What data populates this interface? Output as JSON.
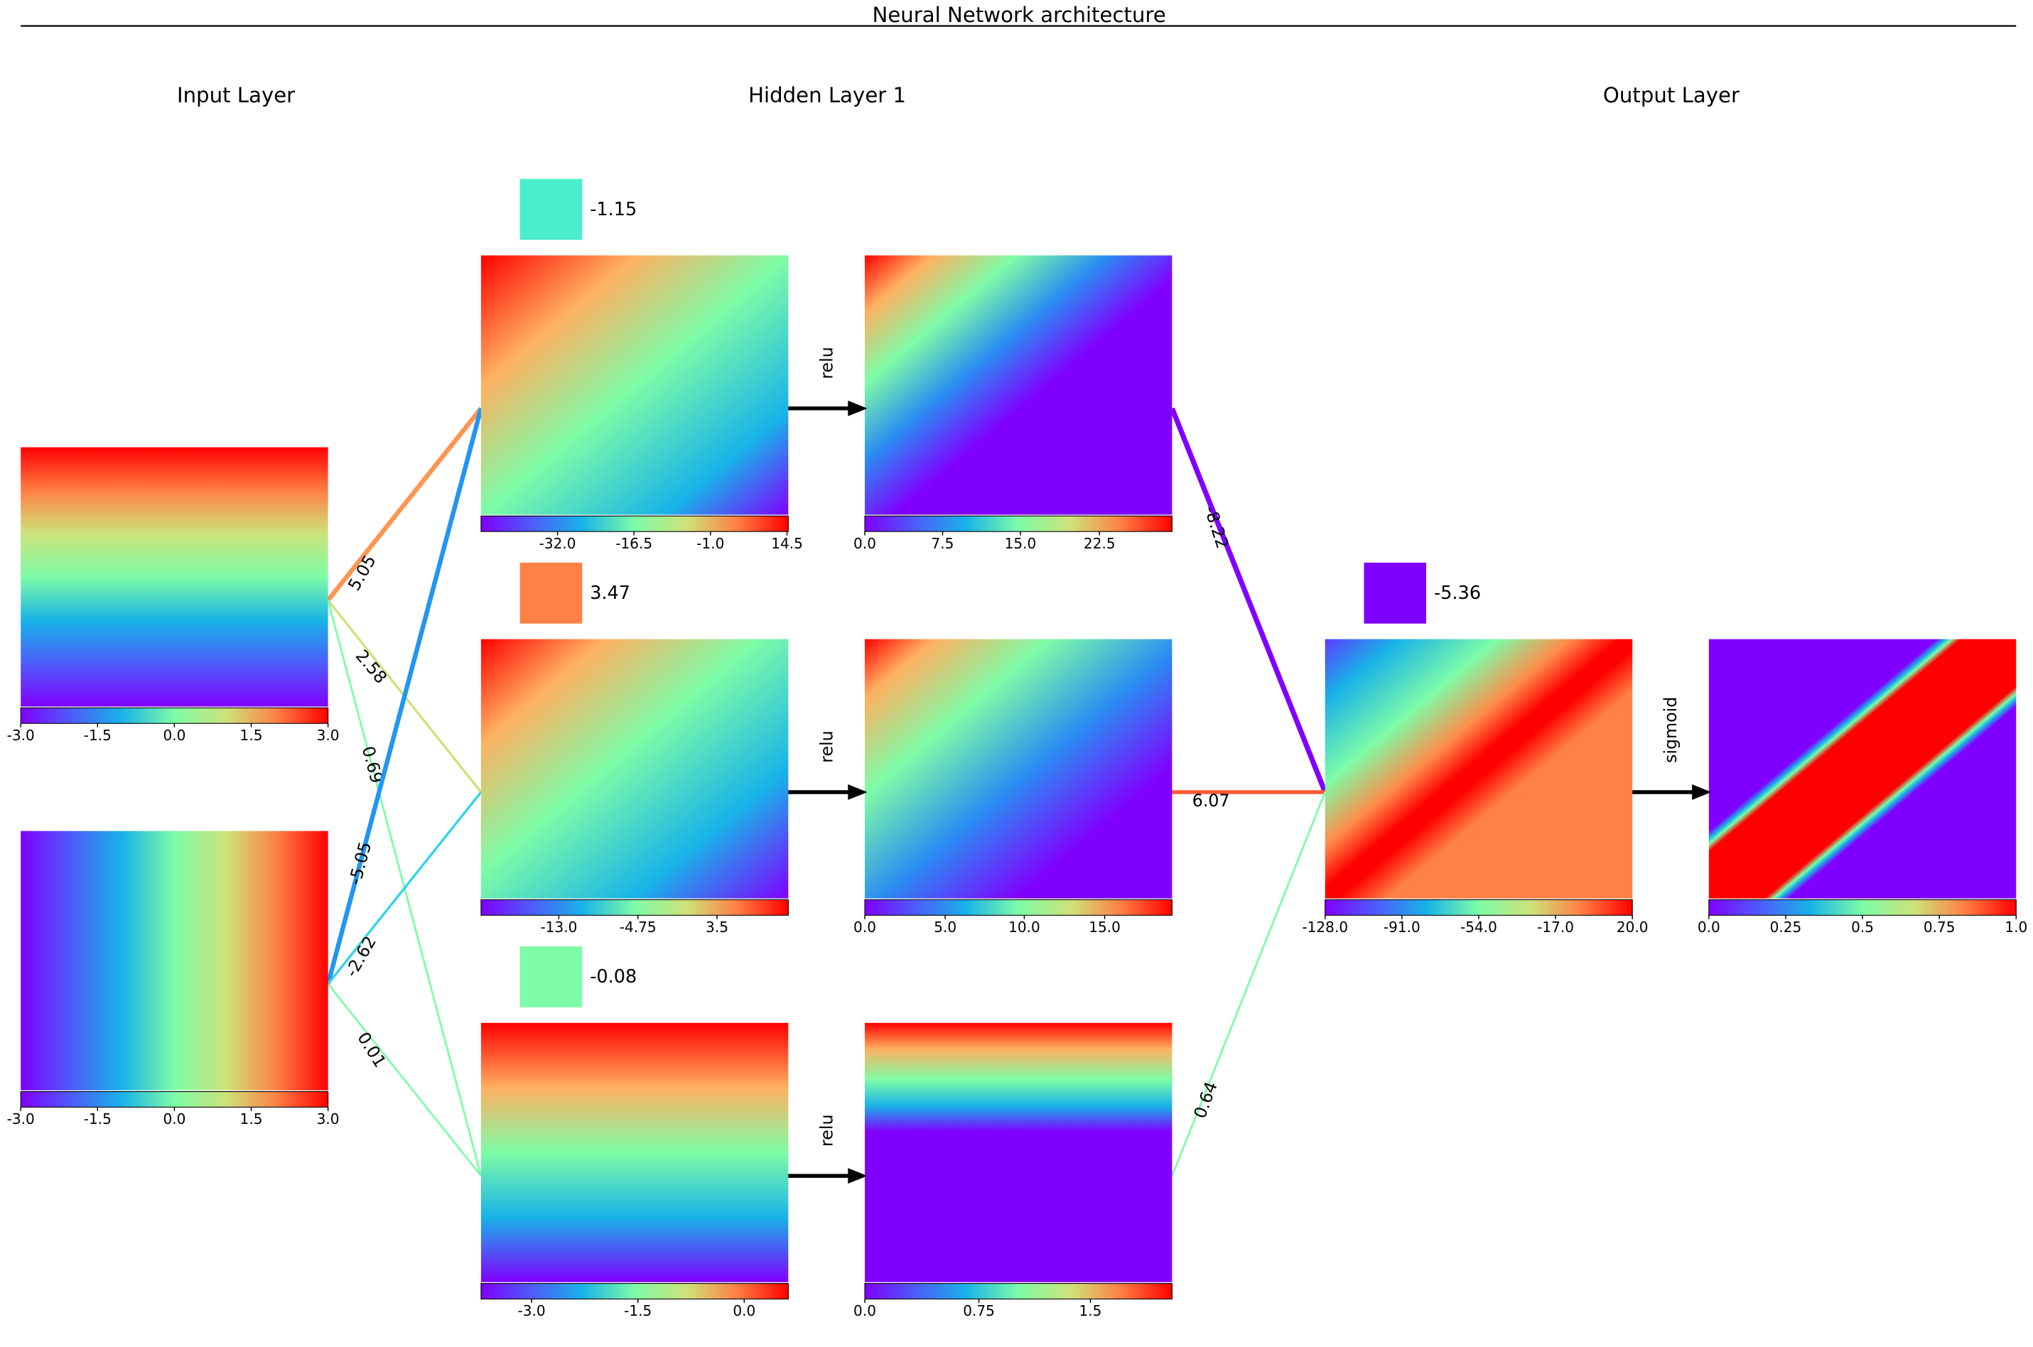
{
  "title": "Neural Network architecture",
  "layers": [
    {
      "label": "Input Layer"
    },
    {
      "label": "Hidden Layer 1"
    },
    {
      "label": "Output Layer"
    }
  ],
  "input_nodes": [
    {
      "ticks": [
        "-3.0",
        "-1.5",
        "0.0",
        "1.5",
        "3.0"
      ]
    },
    {
      "ticks": [
        "-3.0",
        "-1.5",
        "0.0",
        "1.5",
        "3.0"
      ]
    }
  ],
  "hidden_nodes": [
    {
      "bias": "-1.15",
      "bias_color": "#4aeecb",
      "activation": "relu",
      "pre_ticks": [
        "-32.0",
        "-16.5",
        "-1.0",
        "14.5"
      ],
      "post_ticks": [
        "0.0",
        "7.5",
        "15.0",
        "22.5"
      ]
    },
    {
      "bias": "3.47",
      "bias_color": "#ff8145",
      "activation": "relu",
      "pre_ticks": [
        "-13.0",
        "-4.75",
        "3.5"
      ],
      "post_ticks": [
        "0.0",
        "5.0",
        "10.0",
        "15.0"
      ]
    },
    {
      "bias": "-0.08",
      "bias_color": "#7efca7",
      "activation": "relu",
      "pre_ticks": [
        "-3.0",
        "-1.5",
        "0.0"
      ],
      "post_ticks": [
        "0.0",
        "0.75",
        "1.5"
      ]
    }
  ],
  "output_node": {
    "bias": "-5.36",
    "bias_color": "#8000ff",
    "activation": "sigmoid",
    "pre_ticks": [
      "-128.0",
      "-91.0",
      "-54.0",
      "-17.0",
      "20.0"
    ],
    "post_ticks": [
      "0.0",
      "0.25",
      "0.5",
      "0.75",
      "1.0"
    ]
  },
  "weights_input_hidden": [
    {
      "from": 0,
      "to": 0,
      "label": "5.05",
      "color": "#ff9452"
    },
    {
      "from": 0,
      "to": 1,
      "label": "2.58",
      "color": "#cde27a"
    },
    {
      "from": 0,
      "to": 2,
      "label": "0.69",
      "color": "#7efca7"
    },
    {
      "from": 1,
      "to": 0,
      "label": "-5.05",
      "color": "#2196f3"
    },
    {
      "from": 1,
      "to": 1,
      "label": "-2.62",
      "color": "#2fd6e6"
    },
    {
      "from": 1,
      "to": 2,
      "label": "0.01",
      "color": "#7efca7"
    }
  ],
  "weights_hidden_output": [
    {
      "from": 0,
      "label": "-8.22",
      "color": "#8000ff"
    },
    {
      "from": 1,
      "label": "6.07",
      "color": "#ff5a36"
    },
    {
      "from": 2,
      "label": "0.64",
      "color": "#7efca7"
    }
  ],
  "colormap": "rainbow"
}
